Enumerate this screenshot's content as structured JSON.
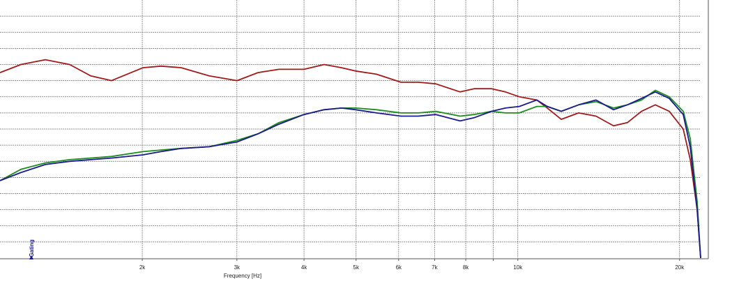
{
  "chart_data": {
    "type": "line",
    "x_label": "Frequency [Hz]",
    "annotation": "Gating",
    "x_log": true,
    "grid": true,
    "xlim": [
      1087,
      21890
    ],
    "ylim": [
      0,
      16
    ],
    "xticks": [
      {
        "value": 2000,
        "label": "2k"
      },
      {
        "value": 3000,
        "label": "3k"
      },
      {
        "value": 4000,
        "label": "4k"
      },
      {
        "value": 5000,
        "label": "5k"
      },
      {
        "value": 6000,
        "label": "6k"
      },
      {
        "value": 7000,
        "label": "7k"
      },
      {
        "value": 8000,
        "label": "8k"
      },
      {
        "value": 9000,
        "label": null
      },
      {
        "value": 10000,
        "label": "10k"
      },
      {
        "value": 20000,
        "label": "20k"
      }
    ],
    "yticks": [
      1,
      2,
      3,
      4,
      5,
      6,
      7,
      8,
      9,
      10,
      11,
      12,
      13,
      14,
      15
    ],
    "x": [
      1087,
      1189,
      1320,
      1465,
      1603,
      1753,
      2006,
      2167,
      2364,
      2664,
      3002,
      3283,
      3591,
      3999,
      4361,
      4699,
      4988,
      5457,
      6058,
      6527,
      7034,
      7810,
      8289,
      8933,
      9483,
      10067,
      10848,
      11345,
      12044,
      12979,
      13979,
      15066,
      15990,
      16990,
      18022,
      19131,
      20316,
      20935,
      21566,
      21892
    ],
    "series": [
      {
        "color": "#a11a1a",
        "values": [
          11.5,
          12.0,
          12.3,
          12.0,
          11.3,
          11.0,
          11.8,
          11.9,
          11.8,
          11.3,
          11.0,
          11.5,
          11.7,
          11.7,
          12.0,
          11.8,
          11.6,
          11.4,
          10.9,
          10.9,
          10.8,
          10.3,
          10.5,
          10.5,
          10.3,
          10.0,
          9.8,
          9.3,
          8.6,
          9.0,
          8.8,
          8.2,
          8.4,
          9.1,
          9.5,
          9.1,
          8.0,
          6.1,
          3.0,
          0
        ]
      },
      {
        "color": "#1c8c1c",
        "values": [
          4.8,
          5.5,
          5.9,
          6.1,
          6.2,
          6.3,
          6.6,
          6.7,
          6.8,
          6.9,
          7.3,
          7.7,
          8.4,
          8.9,
          9.2,
          9.3,
          9.3,
          9.2,
          9.0,
          9.0,
          9.1,
          8.8,
          8.9,
          9.1,
          9.0,
          9.0,
          9.4,
          9.4,
          9.1,
          9.5,
          9.7,
          9.3,
          9.5,
          9.8,
          10.4,
          10.0,
          9.1,
          7.4,
          3.5,
          0
        ]
      },
      {
        "color": "#1a1a8e",
        "values": [
          4.8,
          5.3,
          5.8,
          6.0,
          6.1,
          6.2,
          6.4,
          6.6,
          6.8,
          6.9,
          7.2,
          7.7,
          8.3,
          8.9,
          9.2,
          9.3,
          9.2,
          9.0,
          8.8,
          8.8,
          8.9,
          8.5,
          8.7,
          9.1,
          9.3,
          9.4,
          9.8,
          9.4,
          9.1,
          9.5,
          9.8,
          9.2,
          9.5,
          9.9,
          10.3,
          9.9,
          8.9,
          6.9,
          3.0,
          0
        ]
      }
    ]
  }
}
